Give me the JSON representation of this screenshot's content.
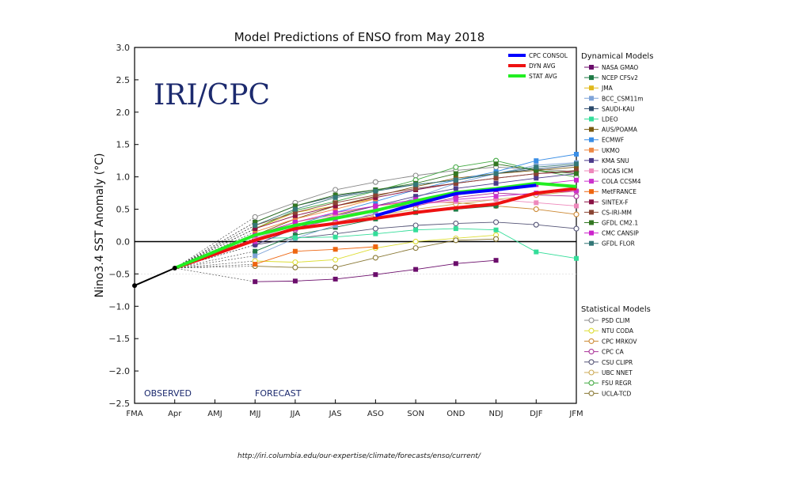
{
  "chart_data": {
    "type": "line",
    "title": "Model Predictions of ENSO from May 2018",
    "ylabel": "Nino3.4 SST Anomaly (°C)",
    "xlabel": "",
    "categories": [
      "FMA",
      "Apr",
      "AMJ",
      "MJJ",
      "JJA",
      "JAS",
      "ASO",
      "SON",
      "OND",
      "NDJ",
      "DJF",
      "JFM"
    ],
    "ylim": [
      -2.5,
      3.0
    ],
    "yticks": [
      "3.0",
      "2.5",
      "2.0",
      "1.5",
      "1.0",
      "0.5",
      "0.0",
      "−0.5",
      "−1.0",
      "−1.5",
      "−2.0",
      "−2.5"
    ],
    "yticks_values": [
      3.0,
      2.5,
      2.0,
      1.5,
      1.0,
      0.5,
      0.0,
      -0.5,
      -1.0,
      -1.5,
      -2.0,
      -2.5
    ],
    "observed": {
      "label": "OBSERVED",
      "values": [
        -0.68,
        -0.41
      ]
    },
    "forecast_label": "FORECAST",
    "watermark": "IRI/CPC",
    "averages_legend": [
      {
        "name": "CPC CONSOL",
        "color": "#0000ff"
      },
      {
        "name": "DYN AVG",
        "color": "#ee1111"
      },
      {
        "name": "STAT AVG",
        "color": "#22ee22"
      }
    ],
    "averages": [
      {
        "name": "DYN AVG",
        "color": "#ee1111",
        "values": [
          null,
          -0.41,
          null,
          0.02,
          0.2,
          0.28,
          0.36,
          0.45,
          0.52,
          0.58,
          0.75,
          0.82
        ]
      },
      {
        "name": "STAT AVG",
        "color": "#22ee22",
        "values": [
          null,
          -0.41,
          null,
          0.1,
          0.25,
          0.36,
          0.48,
          0.63,
          0.76,
          0.82,
          0.9,
          0.85
        ]
      },
      {
        "name": "CPC CONSOL",
        "color": "#0000ff",
        "values": [
          null,
          null,
          null,
          null,
          null,
          null,
          0.4,
          0.58,
          0.74,
          0.8,
          0.87,
          null
        ]
      }
    ],
    "dynamical_title": "Dynamical Models",
    "dynamical_models": [
      {
        "name": "NASA GMAO",
        "color": "#6b0d6b",
        "values": [
          -0.62,
          -0.61,
          -0.58,
          -0.51,
          -0.43,
          -0.34,
          -0.29,
          null,
          null
        ]
      },
      {
        "name": "NCEP CFSv2",
        "color": "#1f7a46",
        "values": [
          -0.15,
          0.1,
          0.22,
          0.35,
          0.45,
          0.5,
          0.55,
          null,
          null
        ]
      },
      {
        "name": "JMA",
        "color": "#e0b81c",
        "values": [
          0.2,
          0.45,
          0.55,
          0.66,
          null,
          null,
          null,
          null,
          null
        ]
      },
      {
        "name": "BCC_CSM11m",
        "color": "#7fa4d8",
        "values": [
          -0.22,
          0.05,
          0.25,
          0.45,
          0.68,
          0.9,
          1.05,
          1.18,
          1.22
        ]
      },
      {
        "name": "SAUDI-KAU",
        "color": "#2b4a6b",
        "values": [
          0.3,
          0.55,
          0.7,
          0.8,
          0.88,
          0.95,
          1.05,
          1.12,
          1.18
        ]
      },
      {
        "name": "LDEO",
        "color": "#33dd99",
        "values": [
          0.05,
          0.06,
          0.07,
          0.12,
          0.18,
          0.2,
          0.18,
          -0.16,
          -0.26
        ]
      },
      {
        "name": "AUS/POAMA",
        "color": "#7a5a10",
        "values": [
          0.1,
          0.35,
          0.55,
          0.7,
          0.85,
          0.98,
          1.05,
          1.1,
          1.15
        ]
      },
      {
        "name": "ECMWF",
        "color": "#3a8ee6",
        "values": [
          0.05,
          0.25,
          0.45,
          0.62,
          0.8,
          0.95,
          1.08,
          1.25,
          1.35
        ]
      },
      {
        "name": "UKMO",
        "color": "#ee8844",
        "values": [
          0.15,
          0.35,
          0.5,
          0.66,
          null,
          null,
          null,
          null,
          null
        ]
      },
      {
        "name": "KMA SNU",
        "color": "#4b3a8a",
        "values": [
          -0.05,
          0.2,
          0.4,
          0.55,
          0.7,
          0.82,
          0.9,
          0.98,
          1.05
        ]
      },
      {
        "name": "IOCAS ICM",
        "color": "#ee88bb",
        "values": [
          0.05,
          0.25,
          0.4,
          0.5,
          0.58,
          0.62,
          0.65,
          0.6,
          0.55
        ]
      },
      {
        "name": "COLA CCSM4",
        "color": "#cc33cc",
        "values": [
          0.0,
          0.2,
          0.35,
          0.48,
          0.58,
          0.65,
          0.7,
          0.75,
          0.78
        ]
      },
      {
        "name": "MetFRANCE",
        "color": "#ee6611",
        "values": [
          -0.35,
          -0.15,
          -0.12,
          -0.08,
          null,
          null,
          null,
          null,
          null
        ]
      },
      {
        "name": "SINTEX-F",
        "color": "#8a1144",
        "values": [
          0.2,
          0.4,
          0.55,
          0.68,
          0.8,
          0.9,
          0.98,
          1.05,
          1.08
        ]
      },
      {
        "name": "CS-IRI-MM",
        "color": "#8a4433",
        "values": [
          0.25,
          0.45,
          0.6,
          0.72,
          0.82,
          0.9,
          0.98,
          1.05,
          1.1
        ]
      },
      {
        "name": "GFDL CM2.1",
        "color": "#337722",
        "values": [
          0.3,
          0.55,
          0.72,
          0.8,
          0.9,
          1.05,
          1.2,
          1.1,
          1.05
        ]
      },
      {
        "name": "CMC CANSIP",
        "color": "#cc22cc",
        "values": [
          0.1,
          0.3,
          0.45,
          0.55,
          0.65,
          0.72,
          0.8,
          0.88,
          0.95
        ]
      },
      {
        "name": "GFDL FLOR",
        "color": "#337777",
        "values": [
          0.25,
          0.5,
          0.68,
          0.78,
          0.88,
          0.95,
          1.05,
          1.15,
          1.2
        ]
      }
    ],
    "statistical_title": "Statistical Models",
    "statistical_models": [
      {
        "name": "PSD CLIM",
        "color": "#888888",
        "values": [
          0.38,
          0.6,
          0.8,
          0.92,
          1.02,
          1.1,
          1.15,
          1.12,
          1.08
        ]
      },
      {
        "name": "NTU CODA",
        "color": "#dddd33",
        "values": [
          -0.3,
          -0.32,
          -0.28,
          -0.1,
          0.0,
          0.05,
          0.1,
          null,
          null
        ]
      },
      {
        "name": "CPC MRKOV",
        "color": "#cc8833",
        "values": [
          0.1,
          0.3,
          0.42,
          0.55,
          0.62,
          0.6,
          0.55,
          0.5,
          0.42
        ]
      },
      {
        "name": "CPC CA",
        "color": "#aa3399",
        "values": [
          0.05,
          0.18,
          0.3,
          0.42,
          0.55,
          0.68,
          0.75,
          0.72,
          0.7
        ]
      },
      {
        "name": "CSU CLIPR",
        "color": "#555577",
        "values": [
          -0.05,
          0.05,
          0.12,
          0.2,
          0.25,
          0.28,
          0.3,
          0.26,
          0.2
        ]
      },
      {
        "name": "UBC NNET",
        "color": "#ccaa55",
        "values": [
          0.05,
          0.2,
          0.3,
          0.4,
          0.5,
          0.58,
          0.65,
          0.72,
          0.78
        ]
      },
      {
        "name": "FSU REGR",
        "color": "#44aa44",
        "values": [
          0.2,
          0.48,
          0.62,
          0.78,
          0.95,
          1.15,
          1.25,
          1.1,
          1.0
        ]
      },
      {
        "name": "UCLA-TCD",
        "color": "#887733",
        "values": [
          -0.38,
          -0.4,
          -0.4,
          -0.25,
          -0.1,
          0.02,
          0.04,
          null,
          null
        ]
      }
    ]
  },
  "source_url": "http://iri.columbia.edu/our-expertise/climate/forecasts/enso/current/"
}
